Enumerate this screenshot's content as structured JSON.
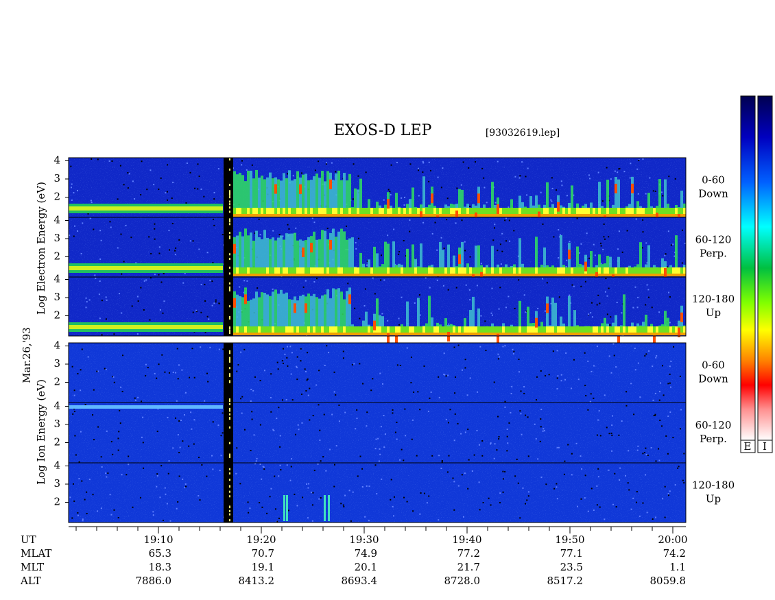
{
  "title": "EXOS-D LEP",
  "file": "[93032619.lep]",
  "date_label": "Mar.26,'93",
  "electron_axis_label": "Log Electron Energy (eV)",
  "ion_axis_label": "Log Ion Energy (eV)",
  "energy_ticks": [
    2,
    3,
    4
  ],
  "pitch_panels": [
    {
      "range": "0-60",
      "direction": "Down"
    },
    {
      "range": "60-120",
      "direction": "Perp."
    },
    {
      "range": "120-180",
      "direction": "Up"
    }
  ],
  "colorbar_labels": [
    "E",
    "I"
  ],
  "orbit": {
    "times": [
      "19:10",
      "19:20",
      "19:30",
      "19:40",
      "19:50",
      "20:00"
    ],
    "rows": [
      {
        "name": "UT",
        "values": null
      },
      {
        "name": "MLAT",
        "values": [
          "65.3",
          "70.7",
          "74.9",
          "77.2",
          "77.1",
          "74.2"
        ]
      },
      {
        "name": "MLT",
        "values": [
          "18.3",
          "19.1",
          "20.1",
          "21.7",
          "23.5",
          "1.1"
        ]
      },
      {
        "name": "ALT",
        "values": [
          "7886.0",
          "8413.2",
          "8693.4",
          "8728.0",
          "8517.2",
          "8059.8"
        ]
      }
    ]
  }
}
